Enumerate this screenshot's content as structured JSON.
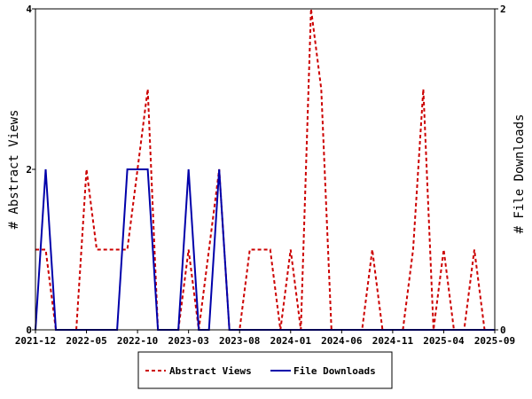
{
  "chart_data": {
    "type": "line",
    "x": [
      "2021-12",
      "2022-01",
      "2022-02",
      "2022-03",
      "2022-04",
      "2022-05",
      "2022-06",
      "2022-07",
      "2022-08",
      "2022-09",
      "2022-10",
      "2022-11",
      "2022-12",
      "2023-01",
      "2023-02",
      "2023-03",
      "2023-04",
      "2023-05",
      "2023-06",
      "2023-07",
      "2023-08",
      "2023-09",
      "2023-10",
      "2023-11",
      "2023-12",
      "2024-01",
      "2024-02",
      "2024-03",
      "2024-04",
      "2024-05",
      "2024-06",
      "2024-07",
      "2024-08",
      "2024-09",
      "2024-10",
      "2024-11",
      "2024-12",
      "2025-01",
      "2025-02",
      "2025-03",
      "2025-04",
      "2025-05",
      "2025-06",
      "2025-07",
      "2025-08",
      "2025-09"
    ],
    "series": [
      {
        "name": "Abstract Views",
        "axis": "left",
        "color": "#cc0000",
        "dash": true,
        "values": [
          1,
          1,
          0,
          0,
          0,
          2,
          1,
          1,
          1,
          1,
          2,
          3,
          0,
          0,
          0,
          1,
          0,
          1,
          2,
          0,
          0,
          1,
          1,
          1,
          0,
          1,
          0,
          4,
          3,
          0,
          0,
          0,
          0,
          1,
          0,
          0,
          0,
          1,
          3,
          0,
          1,
          0,
          0,
          1,
          0,
          0
        ]
      },
      {
        "name": "File Downloads",
        "axis": "right",
        "color": "#0000aa",
        "dash": false,
        "values": [
          0,
          1,
          0,
          0,
          0,
          0,
          0,
          0,
          0,
          1,
          1,
          1,
          0,
          0,
          0,
          1,
          0,
          0,
          1,
          0,
          0,
          0,
          0,
          0,
          0,
          0,
          0,
          0,
          0,
          0,
          0,
          0,
          0,
          0,
          0,
          0,
          0,
          0,
          0,
          0,
          0,
          0,
          0,
          0,
          0,
          0
        ]
      }
    ],
    "xticks": [
      "2021-12",
      "2022-05",
      "2022-10",
      "2023-03",
      "2023-08",
      "2024-01",
      "2024-06",
      "2024-11",
      "2025-04",
      "2025-09"
    ],
    "yticks_left": [
      "0",
      "2",
      "4"
    ],
    "yticks_right": [
      "0",
      "2"
    ],
    "ylim_left": [
      0,
      4
    ],
    "ylim_right": [
      0,
      2
    ],
    "ylabel_left": "# Abstract Views",
    "ylabel_right": "# File Downloads",
    "xlabel": "",
    "title": "",
    "grid": false,
    "legend_position": "bottom"
  }
}
